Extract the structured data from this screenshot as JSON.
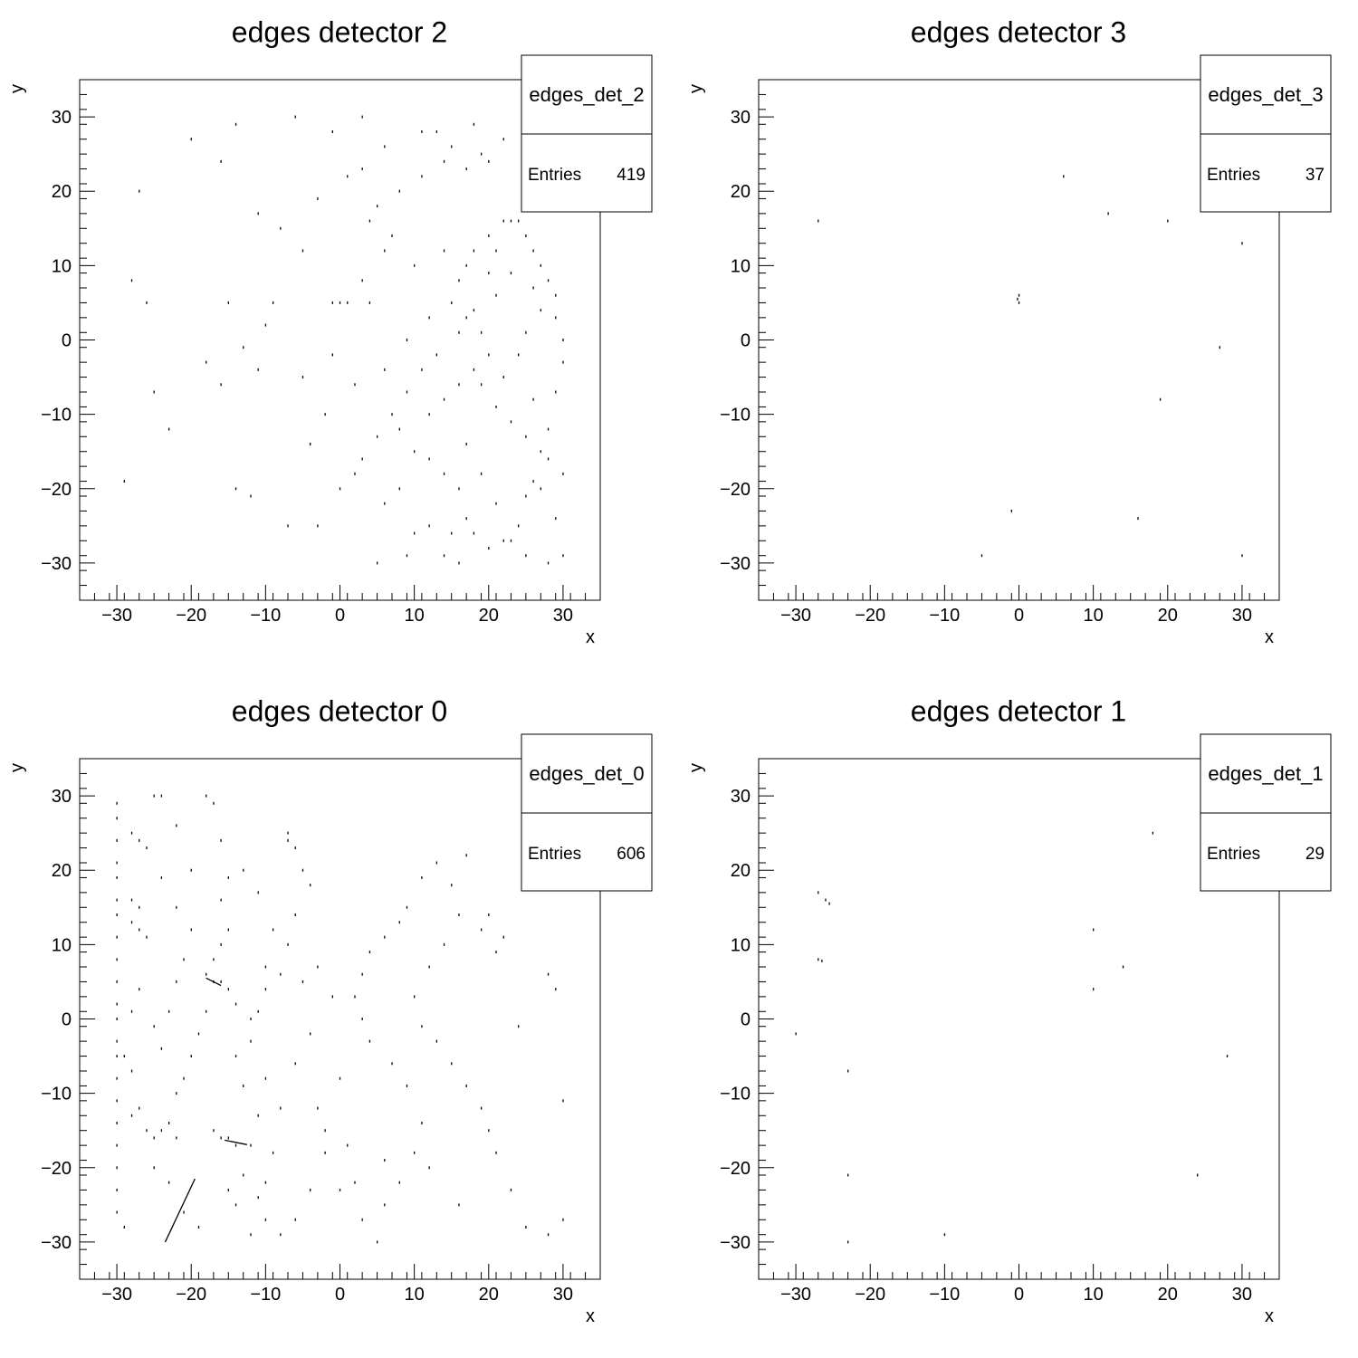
{
  "chart_data": [
    {
      "type": "scatter",
      "title": "edges detector 2",
      "xlabel": "x",
      "ylabel": "y",
      "xlim": [
        -35,
        35
      ],
      "ylim": [
        -35,
        35
      ],
      "xticks": [
        -30,
        -20,
        -10,
        0,
        10,
        20,
        30
      ],
      "yticks": [
        -30,
        -20,
        -10,
        0,
        10,
        20,
        30
      ],
      "stats": {
        "name": "edges_det_2",
        "entries_label": "Entries",
        "entries": "419"
      },
      "points": [
        [
          -16,
          24
        ],
        [
          -11,
          17
        ],
        [
          -20,
          27
        ],
        [
          -14,
          29
        ],
        [
          -6,
          30
        ],
        [
          -8,
          15
        ],
        [
          -27,
          20
        ],
        [
          -26,
          5
        ],
        [
          -28,
          8
        ],
        [
          -15,
          5
        ],
        [
          -9,
          5
        ],
        [
          -13,
          -1
        ],
        [
          -11,
          -4
        ],
        [
          -25,
          -7
        ],
        [
          -29,
          -19
        ],
        [
          -14,
          -20
        ],
        [
          -12,
          -21
        ],
        [
          -16,
          -6
        ],
        [
          -7,
          -25
        ],
        [
          -3,
          -25
        ],
        [
          0,
          -20
        ],
        [
          -2,
          -10
        ],
        [
          -5,
          -5
        ],
        [
          -1,
          5
        ],
        [
          0,
          5
        ],
        [
          1,
          5
        ],
        [
          3,
          8
        ],
        [
          4,
          5
        ],
        [
          5,
          18
        ],
        [
          3,
          23
        ],
        [
          8,
          20
        ],
        [
          11,
          22
        ],
        [
          14,
          24
        ],
        [
          17,
          23
        ],
        [
          18,
          29
        ],
        [
          19,
          25
        ],
        [
          22,
          27
        ],
        [
          23,
          16
        ],
        [
          24,
          16
        ],
        [
          25,
          14
        ],
        [
          26,
          12
        ],
        [
          27,
          10
        ],
        [
          28,
          8
        ],
        [
          29,
          6
        ],
        [
          29,
          3
        ],
        [
          30,
          0
        ],
        [
          30,
          -3
        ],
        [
          29,
          -7
        ],
        [
          28,
          -12
        ],
        [
          27,
          -15
        ],
        [
          26,
          -19
        ],
        [
          25,
          -21
        ],
        [
          24,
          -25
        ],
        [
          23,
          -27
        ],
        [
          20,
          -28
        ],
        [
          16,
          -30
        ],
        [
          14,
          -29
        ],
        [
          9,
          -29
        ],
        [
          5,
          -30
        ],
        [
          10,
          -26
        ],
        [
          12,
          -25
        ],
        [
          15,
          -26
        ],
        [
          18,
          -26
        ],
        [
          17,
          -24
        ],
        [
          16,
          -20
        ],
        [
          14,
          -18
        ],
        [
          12,
          -16
        ],
        [
          10,
          -15
        ],
        [
          8,
          -12
        ],
        [
          12,
          -10
        ],
        [
          14,
          -8
        ],
        [
          16,
          -6
        ],
        [
          18,
          -4
        ],
        [
          20,
          -2
        ],
        [
          19,
          1
        ],
        [
          17,
          3
        ],
        [
          15,
          5
        ],
        [
          16,
          8
        ],
        [
          17,
          10
        ],
        [
          18,
          12
        ],
        [
          20,
          14
        ],
        [
          22,
          16
        ],
        [
          21,
          12
        ],
        [
          20,
          9
        ],
        [
          18,
          4
        ],
        [
          16,
          1
        ],
        [
          13,
          -2
        ],
        [
          11,
          -4
        ],
        [
          9,
          -7
        ],
        [
          7,
          -10
        ],
        [
          5,
          -13
        ],
        [
          3,
          -16
        ],
        [
          2,
          -18
        ],
        [
          6,
          -22
        ],
        [
          8,
          -20
        ],
        [
          21,
          -9
        ],
        [
          23,
          -11
        ],
        [
          25,
          -13
        ],
        [
          26,
          -8
        ],
        [
          22,
          -5
        ],
        [
          24,
          -2
        ],
        [
          25,
          1
        ],
        [
          27,
          4
        ],
        [
          26,
          7
        ],
        [
          23,
          9
        ],
        [
          21,
          6
        ],
        [
          19,
          -6
        ],
        [
          17,
          -14
        ],
        [
          19,
          -18
        ],
        [
          21,
          -22
        ],
        [
          22,
          -27
        ],
        [
          25,
          -29
        ],
        [
          28,
          -30
        ],
        [
          30,
          -29
        ],
        [
          29,
          -24
        ],
        [
          27,
          -20
        ],
        [
          28,
          -16
        ],
        [
          30,
          -18
        ],
        [
          11,
          28
        ],
        [
          13,
          28
        ],
        [
          15,
          26
        ],
        [
          20,
          24
        ],
        [
          -3,
          19
        ],
        [
          -5,
          12
        ],
        [
          -10,
          2
        ],
        [
          7,
          14
        ],
        [
          -23,
          -12
        ],
        [
          -18,
          -3
        ],
        [
          -4,
          -14
        ],
        [
          -1,
          -2
        ],
        [
          2,
          -6
        ],
        [
          6,
          -4
        ],
        [
          9,
          0
        ],
        [
          12,
          3
        ],
        [
          14,
          12
        ],
        [
          10,
          10
        ],
        [
          6,
          12
        ],
        [
          4,
          16
        ],
        [
          1,
          22
        ],
        [
          -1,
          28
        ],
        [
          3,
          30
        ],
        [
          6,
          26
        ]
      ]
    },
    {
      "type": "scatter",
      "title": "edges detector 3",
      "xlabel": "x",
      "ylabel": "y",
      "xlim": [
        -35,
        35
      ],
      "ylim": [
        -35,
        35
      ],
      "xticks": [
        -30,
        -20,
        -10,
        0,
        10,
        20,
        30
      ],
      "yticks": [
        -30,
        -20,
        -10,
        0,
        10,
        20,
        30
      ],
      "stats": {
        "name": "edges_det_3",
        "entries_label": "Entries",
        "entries": "37"
      },
      "points": [
        [
          -27,
          16
        ],
        [
          6,
          22
        ],
        [
          12,
          17
        ],
        [
          20,
          16
        ],
        [
          30,
          13
        ],
        [
          27,
          -1
        ],
        [
          19,
          -8
        ],
        [
          16,
          -24
        ],
        [
          -1,
          -23
        ],
        [
          -5,
          -29
        ],
        [
          30,
          -29
        ],
        [
          0,
          5
        ],
        [
          0,
          6
        ],
        [
          -0.2,
          5.5
        ]
      ]
    },
    {
      "type": "scatter",
      "title": "edges detector 0",
      "xlabel": "x",
      "ylabel": "y",
      "xlim": [
        -35,
        35
      ],
      "ylim": [
        -35,
        35
      ],
      "xticks": [
        -30,
        -20,
        -10,
        0,
        10,
        20,
        30
      ],
      "yticks": [
        -30,
        -20,
        -10,
        0,
        10,
        20,
        30
      ],
      "stats": {
        "name": "edges_det_0",
        "entries_label": "Entries",
        "entries": "606"
      },
      "points": [
        [
          -30,
          29
        ],
        [
          -30,
          27
        ],
        [
          -30,
          24
        ],
        [
          -30,
          21
        ],
        [
          -30,
          19
        ],
        [
          -30,
          16
        ],
        [
          -30,
          14
        ],
        [
          -30,
          11
        ],
        [
          -30,
          8
        ],
        [
          -30,
          5
        ],
        [
          -30,
          2
        ],
        [
          -30,
          0
        ],
        [
          -30,
          -3
        ],
        [
          -30,
          -5
        ],
        [
          -30,
          -8
        ],
        [
          -30,
          -11
        ],
        [
          -30,
          -14
        ],
        [
          -30,
          -17
        ],
        [
          -30,
          -20
        ],
        [
          -30,
          -23
        ],
        [
          -30,
          -26
        ],
        [
          -29,
          -28
        ],
        [
          -28,
          25
        ],
        [
          -27,
          24
        ],
        [
          -26,
          23
        ],
        [
          -28,
          16
        ],
        [
          -27,
          15
        ],
        [
          -28,
          13
        ],
        [
          -27,
          12
        ],
        [
          -26,
          11
        ],
        [
          -27,
          4
        ],
        [
          -28,
          1
        ],
        [
          -29,
          -5
        ],
        [
          -28,
          -7
        ],
        [
          -27,
          -12
        ],
        [
          -28,
          -13
        ],
        [
          -26,
          -15
        ],
        [
          -25,
          -16
        ],
        [
          -24,
          -15
        ],
        [
          -23,
          -14
        ],
        [
          -22,
          -16
        ],
        [
          -25,
          -20
        ],
        [
          -23,
          -22
        ],
        [
          -21,
          -26
        ],
        [
          -19,
          -28
        ],
        [
          -25,
          30
        ],
        [
          -24,
          30
        ],
        [
          -22,
          26
        ],
        [
          -20,
          20
        ],
        [
          -18,
          30
        ],
        [
          -17,
          29
        ],
        [
          -16,
          24
        ],
        [
          -15,
          19
        ],
        [
          -16,
          16
        ],
        [
          -15,
          12
        ],
        [
          -16,
          10
        ],
        [
          -17,
          8
        ],
        [
          -18,
          6
        ],
        [
          -17,
          5
        ],
        [
          -16,
          5
        ],
        [
          -15,
          4
        ],
        [
          -14,
          2
        ],
        [
          -18,
          1
        ],
        [
          -19,
          -2
        ],
        [
          -20,
          -5
        ],
        [
          -21,
          -8
        ],
        [
          -22,
          -10
        ],
        [
          -24,
          -4
        ],
        [
          -25,
          -1
        ],
        [
          -23,
          1
        ],
        [
          -22,
          5
        ],
        [
          -21,
          8
        ],
        [
          -20,
          12
        ],
        [
          -22,
          15
        ],
        [
          -24,
          19
        ],
        [
          -7,
          25
        ],
        [
          -7,
          24
        ],
        [
          -6,
          23
        ],
        [
          -5,
          20
        ],
        [
          -4,
          18
        ],
        [
          -6,
          14
        ],
        [
          -7,
          10
        ],
        [
          -8,
          6
        ],
        [
          -10,
          4
        ],
        [
          -11,
          1
        ],
        [
          -12,
          -3
        ],
        [
          -10,
          -8
        ],
        [
          -8,
          -12
        ],
        [
          -6,
          -6
        ],
        [
          -4,
          -2
        ],
        [
          -3,
          -12
        ],
        [
          -2,
          -18
        ],
        [
          -4,
          -23
        ],
        [
          -6,
          -27
        ],
        [
          -8,
          -29
        ],
        [
          -12,
          -29
        ],
        [
          -14,
          -25
        ],
        [
          -15,
          -23
        ],
        [
          -13,
          -21
        ],
        [
          -12,
          -17
        ],
        [
          -14,
          -17
        ],
        [
          -15,
          -16
        ],
        [
          -16,
          -16
        ],
        [
          -17,
          -15
        ],
        [
          -11,
          -24
        ],
        [
          -10,
          -27
        ],
        [
          1,
          -17
        ],
        [
          2,
          -22
        ],
        [
          3,
          -27
        ],
        [
          5,
          -30
        ],
        [
          6,
          -25
        ],
        [
          8,
          -22
        ],
        [
          10,
          -18
        ],
        [
          11,
          -14
        ],
        [
          9,
          -9
        ],
        [
          7,
          -6
        ],
        [
          4,
          -3
        ],
        [
          3,
          0
        ],
        [
          2,
          3
        ],
        [
          3,
          6
        ],
        [
          4,
          9
        ],
        [
          6,
          11
        ],
        [
          8,
          13
        ],
        [
          9,
          15
        ],
        [
          11,
          19
        ],
        [
          13,
          21
        ],
        [
          15,
          18
        ],
        [
          16,
          14
        ],
        [
          14,
          10
        ],
        [
          12,
          7
        ],
        [
          10,
          3
        ],
        [
          11,
          -1
        ],
        [
          13,
          -3
        ],
        [
          15,
          -6
        ],
        [
          17,
          -9
        ],
        [
          19,
          -12
        ],
        [
          20,
          -15
        ],
        [
          21,
          -18
        ],
        [
          23,
          -23
        ],
        [
          25,
          -28
        ],
        [
          28,
          -29
        ],
        [
          30,
          -27
        ],
        [
          30,
          -11
        ],
        [
          29,
          4
        ],
        [
          28,
          6
        ],
        [
          24,
          -1
        ],
        [
          21,
          9
        ],
        [
          19,
          12
        ],
        [
          17,
          22
        ],
        [
          20,
          14
        ],
        [
          22,
          11
        ],
        [
          -5,
          5
        ],
        [
          -3,
          7
        ],
        [
          -1,
          3
        ],
        [
          0,
          -8
        ],
        [
          -2,
          -15
        ],
        [
          -9,
          -18
        ],
        [
          -11,
          -13
        ],
        [
          -13,
          -9
        ],
        [
          -14,
          -5
        ],
        [
          -12,
          0
        ],
        [
          -10,
          7
        ],
        [
          -9,
          12
        ],
        [
          -11,
          17
        ],
        [
          -13,
          20
        ],
        [
          -10,
          -22
        ],
        [
          0,
          -23
        ],
        [
          6,
          -19
        ],
        [
          12,
          -20
        ],
        [
          16,
          -25
        ]
      ],
      "segments": [
        [
          [
            -23.5,
            -30
          ],
          [
            -19.5,
            -21.5
          ]
        ],
        [
          [
            -15.5,
            -16.3
          ],
          [
            -12.5,
            -16.9
          ]
        ],
        [
          [
            -18,
            5.5
          ],
          [
            -16,
            4.5
          ]
        ]
      ]
    },
    {
      "type": "scatter",
      "title": "edges detector 1",
      "xlabel": "x",
      "ylabel": "y",
      "xlim": [
        -35,
        35
      ],
      "ylim": [
        -35,
        35
      ],
      "xticks": [
        -30,
        -20,
        -10,
        0,
        10,
        20,
        30
      ],
      "yticks": [
        -30,
        -20,
        -10,
        0,
        10,
        20,
        30
      ],
      "stats": {
        "name": "edges_det_1",
        "entries_label": "Entries",
        "entries": "29"
      },
      "points": [
        [
          -27,
          17
        ],
        [
          -26,
          16
        ],
        [
          -27,
          8
        ],
        [
          -30,
          -2
        ],
        [
          -23,
          -7
        ],
        [
          -23,
          -21
        ],
        [
          -23,
          -30
        ],
        [
          -10,
          -29
        ],
        [
          10,
          12
        ],
        [
          14,
          7
        ],
        [
          10,
          4
        ],
        [
          18,
          25
        ],
        [
          28,
          -5
        ],
        [
          24,
          -21
        ],
        [
          -26.5,
          7.8
        ],
        [
          -25.5,
          15.5
        ]
      ]
    }
  ]
}
